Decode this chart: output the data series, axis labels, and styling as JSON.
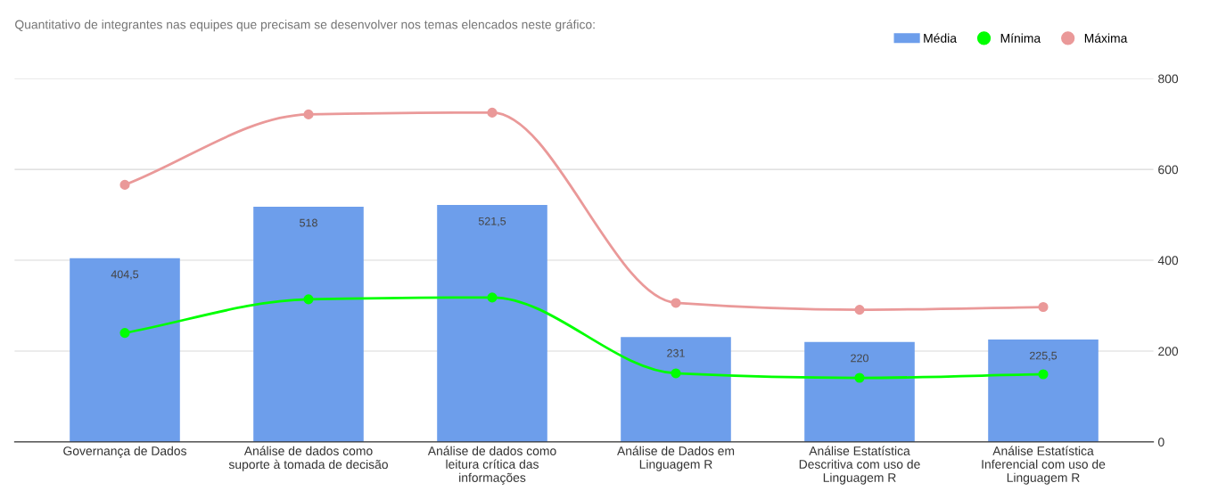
{
  "chart_data": {
    "type": "bar",
    "title": "Quantitativo de integrantes nas equipes que precisam se desenvolver nos temas elencados neste gráfico:",
    "categories": [
      "Governança de Dados",
      "Análise de dados como suporte à tomada de decisão",
      "Análise de dados como leitura crítica das informações",
      "Análise de Dados em Linguagem R",
      "Análise Estatística Descritiva com uso de Linguagem R",
      "Análise Estatística Inferencial com uso de Linguagem R"
    ],
    "series": [
      {
        "name": "Média",
        "color": "#6d9eeb",
        "values": [
          404.5,
          518,
          521.5,
          231,
          220,
          225.5
        ],
        "value_labels": [
          "404,5",
          "518",
          "521,5",
          "231",
          "220",
          "225,5"
        ]
      },
      {
        "name": "Mínima",
        "type": "line",
        "color": "#00ff00",
        "marker": "circle",
        "values": [
          240,
          314,
          318,
          151,
          141,
          149
        ]
      },
      {
        "name": "Máxima",
        "type": "line",
        "color": "#ea9999",
        "marker": "circle",
        "values": [
          566,
          721,
          725,
          306,
          291,
          297
        ]
      }
    ],
    "ylim": [
      0,
      800
    ],
    "yticks": [
      0,
      200,
      400,
      600,
      800
    ],
    "grid": "y",
    "legend": "top right"
  }
}
